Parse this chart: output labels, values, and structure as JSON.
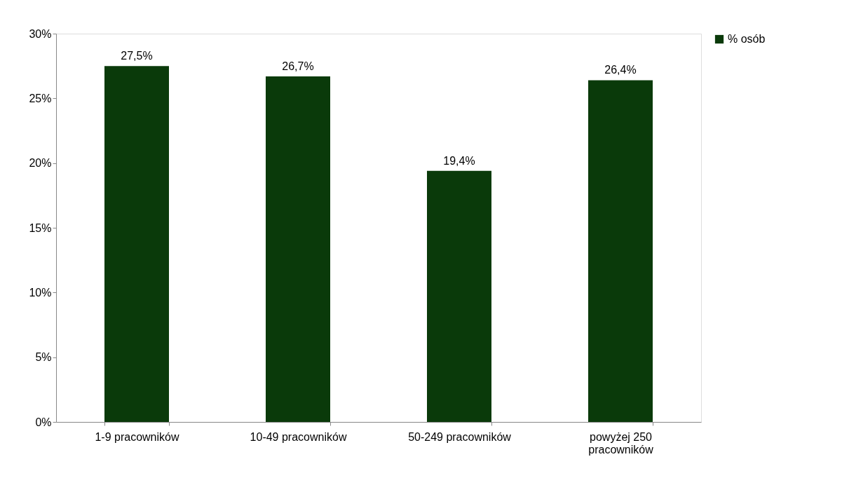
{
  "chart_data": {
    "type": "bar",
    "categories": [
      "1-9 pracowników",
      "10-49 pracowników",
      "50-249 pracowników",
      "powyżej 250 pracowników"
    ],
    "series": [
      {
        "name": "% osób",
        "color": "#0a3a0a",
        "values": [
          27.5,
          26.7,
          19.4,
          26.4
        ],
        "value_labels": [
          "27,5%",
          "26,7%",
          "19,4%",
          "26,4%"
        ]
      }
    ],
    "ylim": [
      0,
      30
    ],
    "yticks": [
      {
        "value": 0,
        "label": "0%"
      },
      {
        "value": 5,
        "label": "5%"
      },
      {
        "value": 10,
        "label": "10%"
      },
      {
        "value": 15,
        "label": "15%"
      },
      {
        "value": 20,
        "label": "20%"
      },
      {
        "value": 25,
        "label": "25%"
      },
      {
        "value": 30,
        "label": "30%"
      }
    ],
    "grid": false,
    "legend": "right"
  }
}
